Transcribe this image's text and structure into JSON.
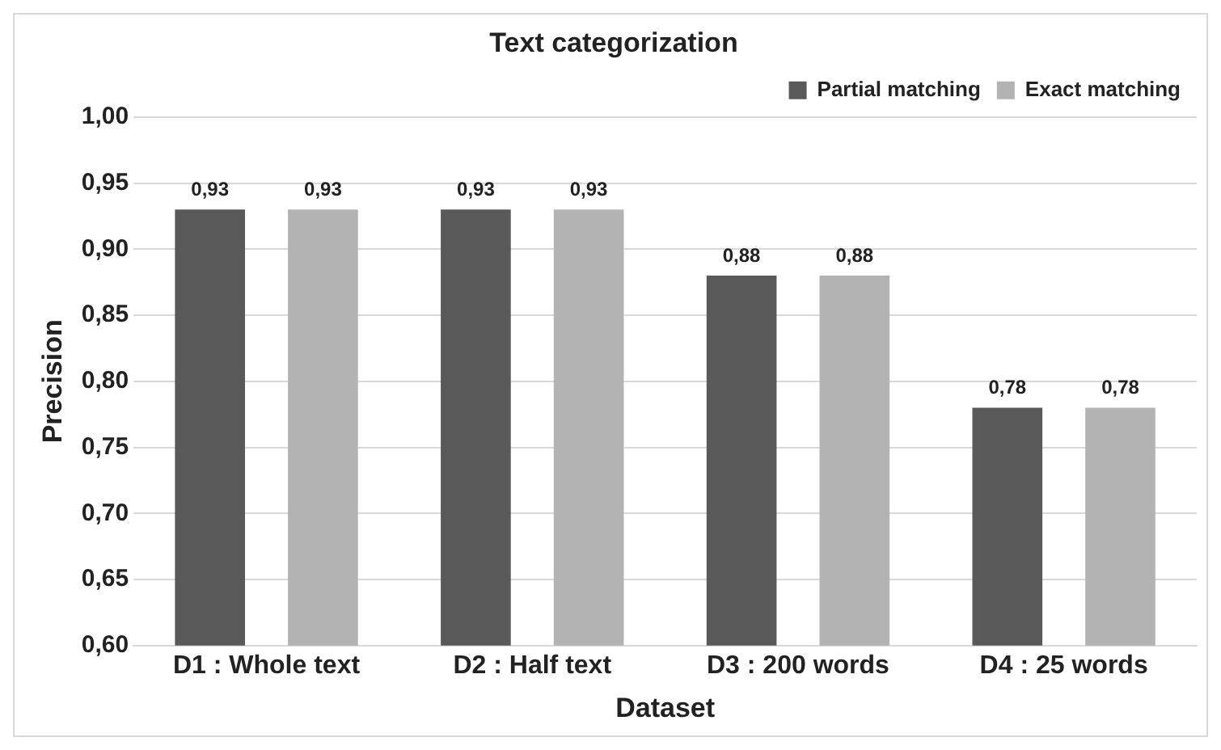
{
  "chart_data": {
    "type": "bar",
    "title": "Text categorization",
    "xlabel": "Dataset",
    "ylabel": "Precision",
    "categories": [
      "D1 : Whole text",
      "D2 : Half text",
      "D3 : 200 words",
      "D4 : 25 words"
    ],
    "series": [
      {
        "name": "Partial matching",
        "color": "#595959",
        "values": [
          0.93,
          0.93,
          0.88,
          0.78
        ],
        "value_labels": [
          "0,93",
          "0,93",
          "0,88",
          "0,78"
        ]
      },
      {
        "name": "Exact matching",
        "color": "#b3b3b3",
        "values": [
          0.93,
          0.93,
          0.88,
          0.78
        ],
        "value_labels": [
          "0,93",
          "0,93",
          "0,88",
          "0,78"
        ]
      }
    ],
    "ylim": [
      0.6,
      1.0
    ],
    "yticks": [
      {
        "value": 0.6,
        "label": "0,60"
      },
      {
        "value": 0.65,
        "label": "0,65"
      },
      {
        "value": 0.7,
        "label": "0,70"
      },
      {
        "value": 0.75,
        "label": "0,75"
      },
      {
        "value": 0.8,
        "label": "0,80"
      },
      {
        "value": 0.85,
        "label": "0,85"
      },
      {
        "value": 0.9,
        "label": "0,90"
      },
      {
        "value": 0.95,
        "label": "0,95"
      },
      {
        "value": 1.0,
        "label": "1,00"
      }
    ],
    "grid": "y",
    "legend": "top right"
  }
}
